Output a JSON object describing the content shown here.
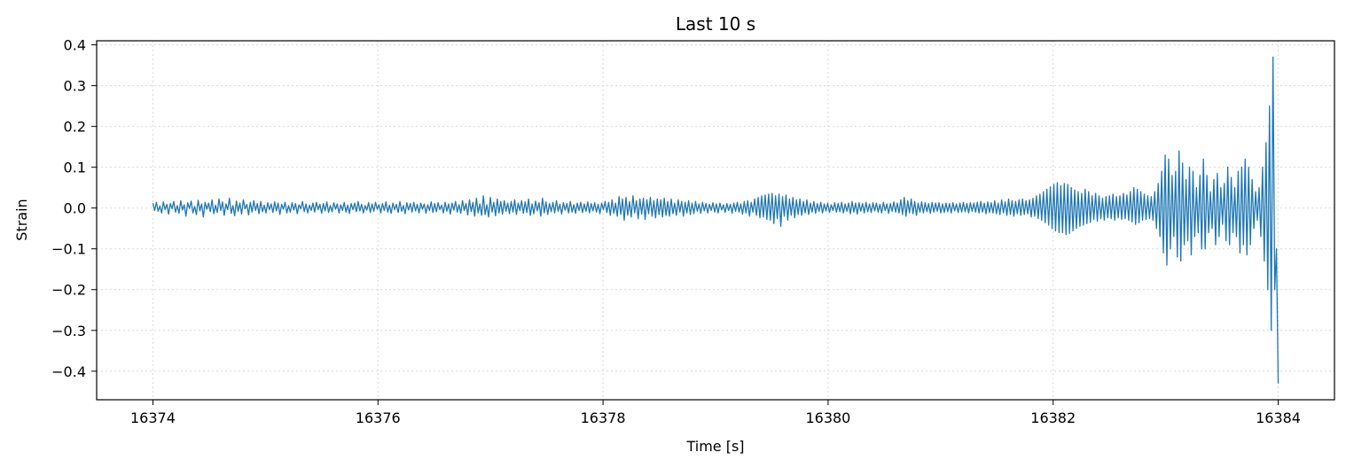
{
  "chart_data": {
    "type": "line",
    "title": "Last 10 s",
    "xlabel": "Time [s]",
    "ylabel": "Strain",
    "xlim": [
      16373.5,
      16384.5
    ],
    "ylim": [
      -0.47,
      0.41
    ],
    "xticks": [
      16374,
      16376,
      16378,
      16380,
      16382,
      16384
    ],
    "xtick_labels": [
      "16374",
      "16376",
      "16378",
      "16380",
      "16382",
      "16384"
    ],
    "yticks": [
      -0.4,
      -0.3,
      -0.2,
      -0.1,
      0.0,
      0.1,
      0.2,
      0.3,
      0.4
    ],
    "ytick_labels": [
      "−0.4",
      "−0.3",
      "−0.2",
      "−0.1",
      "0.0",
      "0.1",
      "0.2",
      "0.3",
      "0.4"
    ],
    "grid": true,
    "series": [
      {
        "color": "#1f77b4",
        "x_start": 16374,
        "x_step": 0.01,
        "y": [
          0.012,
          -0.006,
          0.014,
          -0.008,
          0.005,
          -0.012,
          0.015,
          -0.004,
          0.009,
          -0.015,
          0.011,
          -0.002,
          0.016,
          -0.01,
          0.006,
          -0.013,
          0.018,
          -0.005,
          0.008,
          -0.02,
          0.013,
          -0.001,
          0.017,
          -0.012,
          0.004,
          -0.016,
          0.019,
          -0.007,
          0.01,
          -0.022,
          0.014,
          -0.003,
          0.012,
          -0.009,
          0.02,
          -0.014,
          0.007,
          -0.011,
          0.022,
          -0.006,
          0.015,
          -0.018,
          0.01,
          -0.004,
          0.024,
          -0.013,
          0.006,
          -0.019,
          0.017,
          -0.008,
          0.012,
          -0.015,
          0.02,
          -0.002,
          0.009,
          -0.017,
          0.014,
          -0.01,
          0.018,
          -0.006,
          0.011,
          -0.014,
          0.016,
          -0.009,
          0.007,
          -0.012,
          0.013,
          -0.004,
          0.01,
          -0.011,
          0.015,
          -0.007,
          0.012,
          -0.016,
          0.009,
          -0.003,
          0.014,
          -0.012,
          0.006,
          -0.01,
          0.013,
          -0.005,
          0.011,
          -0.014,
          0.008,
          -0.002,
          0.016,
          -0.009,
          0.01,
          -0.012,
          0.007,
          -0.006,
          0.012,
          -0.01,
          0.014,
          -0.004,
          0.009,
          -0.013,
          0.011,
          -0.007,
          0.015,
          -0.011,
          0.006,
          -0.009,
          0.013,
          -0.003,
          0.01,
          -0.012,
          0.008,
          -0.006,
          0.014,
          -0.01,
          0.007,
          -0.013,
          0.011,
          -0.004,
          0.012,
          -0.009,
          0.016,
          -0.007,
          0.009,
          -0.012,
          0.006,
          -0.005,
          0.013,
          -0.011,
          0.01,
          -0.008,
          0.014,
          -0.003,
          0.008,
          -0.012,
          0.011,
          -0.006,
          0.015,
          -0.01,
          0.007,
          -0.013,
          0.012,
          -0.004,
          0.009,
          -0.011,
          0.016,
          -0.008,
          0.006,
          -0.014,
          0.013,
          -0.005,
          0.011,
          -0.01,
          0.014,
          -0.007,
          0.009,
          -0.012,
          0.012,
          -0.003,
          0.01,
          -0.013,
          0.008,
          -0.006,
          0.015,
          -0.011,
          0.011,
          -0.009,
          0.013,
          -0.004,
          0.007,
          -0.012,
          0.014,
          -0.008,
          0.01,
          -0.015,
          0.012,
          -0.005,
          0.016,
          -0.01,
          0.008,
          -0.013,
          0.018,
          -0.006,
          0.011,
          -0.017,
          0.02,
          -0.009,
          0.014,
          -0.02,
          0.024,
          -0.012,
          0.01,
          -0.018,
          0.03,
          -0.016,
          0.008,
          -0.022,
          0.026,
          -0.01,
          0.014,
          -0.019,
          0.022,
          -0.012,
          0.016,
          -0.015,
          0.018,
          -0.008,
          0.012,
          -0.014,
          0.016,
          -0.01,
          0.02,
          -0.016,
          0.012,
          -0.006,
          0.018,
          -0.013,
          0.015,
          -0.011,
          0.022,
          -0.018,
          0.01,
          -0.014,
          0.017,
          -0.007,
          0.013,
          -0.02,
          0.024,
          -0.012,
          0.015,
          -0.016,
          0.011,
          -0.009,
          0.014,
          -0.012,
          0.018,
          -0.008,
          0.009,
          -0.015,
          0.013,
          -0.005,
          0.011,
          -0.012,
          0.016,
          -0.01,
          0.008,
          -0.013,
          0.012,
          -0.006,
          0.014,
          -0.011,
          0.01,
          -0.008,
          0.015,
          -0.012,
          0.011,
          -0.007,
          0.013,
          -0.01,
          0.009,
          -0.014,
          0.012,
          -0.004,
          0.016,
          -0.011,
          0.014,
          -0.018,
          0.02,
          -0.013,
          0.012,
          -0.02,
          0.028,
          -0.016,
          0.022,
          -0.03,
          0.026,
          -0.018,
          0.016,
          -0.022,
          0.03,
          -0.012,
          0.018,
          -0.026,
          0.022,
          -0.015,
          0.024,
          -0.028,
          0.02,
          -0.014,
          0.026,
          -0.02,
          0.018,
          -0.024,
          0.022,
          -0.016,
          0.02,
          -0.022,
          0.024,
          -0.018,
          0.016,
          -0.02,
          0.022,
          -0.014,
          0.012,
          -0.018,
          0.02,
          -0.01,
          0.016,
          -0.02,
          0.014,
          -0.012,
          0.018,
          -0.016,
          0.012,
          -0.014,
          0.016,
          -0.008,
          0.01,
          -0.013,
          0.014,
          -0.007,
          0.011,
          -0.012,
          0.009,
          -0.006,
          0.013,
          -0.01,
          0.01,
          -0.012,
          0.012,
          -0.005,
          0.008,
          -0.011,
          0.011,
          -0.006,
          0.009,
          -0.013,
          0.012,
          -0.008,
          0.014,
          -0.01,
          0.01,
          -0.015,
          0.016,
          -0.012,
          0.018,
          -0.02,
          0.014,
          -0.01,
          0.022,
          -0.018,
          0.026,
          -0.024,
          0.03,
          -0.022,
          0.032,
          -0.028,
          0.034,
          -0.03,
          0.036,
          -0.038,
          0.03,
          -0.026,
          0.034,
          -0.045,
          0.028,
          -0.02,
          0.032,
          -0.03,
          0.022,
          -0.018,
          0.026,
          -0.024,
          0.02,
          -0.016,
          0.022,
          -0.018,
          0.016,
          -0.012,
          0.02,
          -0.016,
          0.012,
          -0.01,
          0.016,
          -0.013,
          0.011,
          -0.008,
          0.014,
          -0.012,
          0.01,
          -0.007,
          0.012,
          -0.011,
          0.008,
          -0.006,
          0.013,
          -0.01,
          0.011,
          -0.009,
          0.014,
          -0.012,
          0.01,
          -0.008,
          0.012,
          -0.014,
          0.016,
          -0.01,
          0.012,
          -0.015,
          0.013,
          -0.008,
          0.011,
          -0.012,
          0.014,
          -0.009,
          0.01,
          -0.011,
          0.013,
          -0.007,
          0.012,
          -0.01,
          0.009,
          -0.012,
          0.014,
          -0.006,
          0.01,
          -0.013,
          0.011,
          -0.008,
          0.015,
          -0.01,
          0.012,
          -0.012,
          0.02,
          -0.016,
          0.026,
          -0.02,
          0.018,
          -0.012,
          0.022,
          -0.014,
          0.016,
          -0.018,
          0.012,
          -0.01,
          0.015,
          -0.012,
          0.013,
          -0.009,
          0.011,
          -0.013,
          0.014,
          -0.01,
          0.012,
          -0.008,
          0.013,
          -0.012,
          0.01,
          -0.011,
          0.012,
          -0.009,
          0.011,
          -0.012,
          0.013,
          -0.007,
          0.01,
          -0.011,
          0.012,
          -0.01,
          0.014,
          -0.009,
          0.011,
          -0.012,
          0.013,
          -0.008,
          0.012,
          -0.01,
          0.014,
          -0.012,
          0.016,
          -0.01,
          0.012,
          -0.014,
          0.015,
          -0.011,
          0.013,
          -0.012,
          0.018,
          -0.014,
          0.012,
          -0.016,
          0.02,
          -0.012,
          0.015,
          -0.018,
          0.022,
          -0.016,
          0.018,
          -0.02,
          0.016,
          -0.014,
          0.02,
          -0.018,
          0.022,
          -0.016,
          0.018,
          -0.014,
          0.02,
          -0.022,
          0.024,
          -0.02,
          0.03,
          -0.026,
          0.034,
          -0.03,
          0.04,
          -0.036,
          0.046,
          -0.042,
          0.052,
          -0.05,
          0.058,
          -0.056,
          0.062,
          -0.06,
          0.055,
          -0.06,
          0.06,
          -0.065,
          0.058,
          -0.062,
          0.05,
          -0.056,
          0.044,
          -0.05,
          0.04,
          -0.045,
          0.036,
          -0.042,
          0.046,
          -0.038,
          0.04,
          -0.035,
          0.03,
          -0.028,
          0.036,
          -0.032,
          0.03,
          -0.026,
          0.024,
          -0.03,
          0.028,
          -0.024,
          0.03,
          -0.026,
          0.034,
          -0.03,
          0.028,
          -0.024,
          0.03,
          -0.028,
          0.036,
          -0.026,
          0.032,
          -0.03,
          0.04,
          -0.034,
          0.05,
          -0.04,
          0.046,
          -0.036,
          0.04,
          -0.03,
          0.034,
          -0.028,
          0.03,
          -0.026,
          0.028,
          -0.03,
          0.04,
          -0.05,
          0.06,
          -0.07,
          0.09,
          -0.11,
          0.13,
          -0.14,
          0.12,
          -0.1,
          0.08,
          -0.07,
          0.09,
          -0.12,
          0.14,
          -0.13,
          0.11,
          -0.09,
          0.07,
          -0.08,
          0.1,
          -0.115,
          0.09,
          -0.07,
          0.05,
          -0.06,
          0.08,
          -0.1,
          0.12,
          -0.1,
          0.08,
          -0.06,
          0.04,
          -0.05,
          0.07,
          -0.09,
          0.085,
          -0.07,
          0.05,
          -0.04,
          0.06,
          -0.08,
          0.1,
          -0.09,
          0.075,
          -0.06,
          0.05,
          -0.07,
          0.09,
          -0.11,
          0.1,
          -0.09,
          0.12,
          -0.115,
          0.1,
          -0.09,
          0.07,
          -0.05,
          0.04,
          -0.03,
          0.05,
          -0.07,
          0.1,
          -0.13,
          0.16,
          -0.2,
          0.25,
          -0.3,
          0.37,
          -0.2,
          -0.1,
          -0.43
        ]
      }
    ]
  }
}
